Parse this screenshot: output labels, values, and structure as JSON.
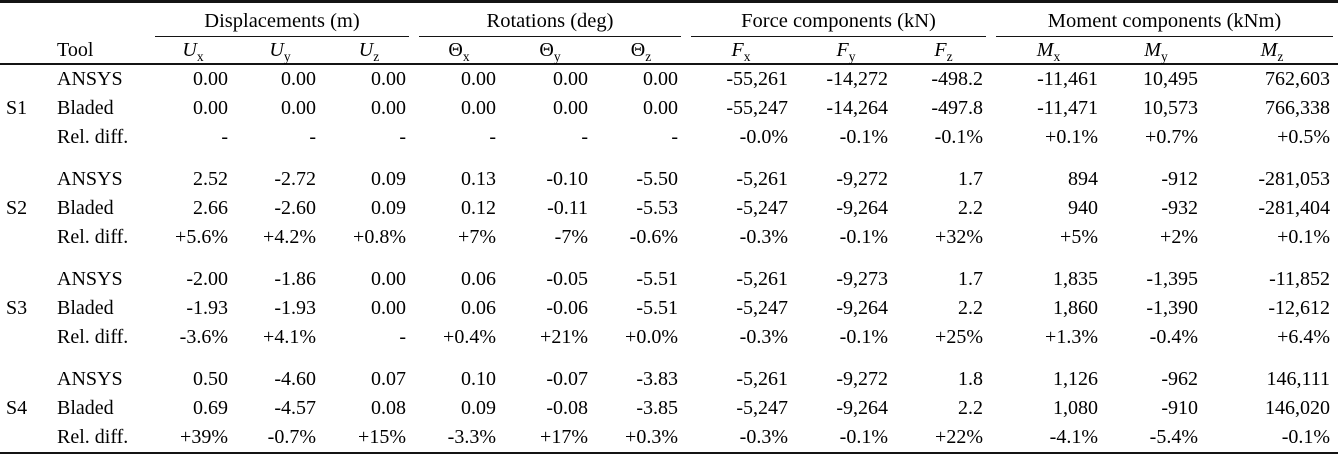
{
  "table": {
    "tool_header": "Tool",
    "groups": [
      {
        "label": "Displacements (m)"
      },
      {
        "label": "Rotations (deg)"
      },
      {
        "label": "Force components (kN)"
      },
      {
        "label": "Moment components (kNm)"
      }
    ],
    "columns": [
      {
        "base": "U",
        "sub": "x"
      },
      {
        "base": "U",
        "sub": "y"
      },
      {
        "base": "U",
        "sub": "z"
      },
      {
        "base": "Θ",
        "sub": "x"
      },
      {
        "base": "Θ",
        "sub": "y"
      },
      {
        "base": "Θ",
        "sub": "z"
      },
      {
        "base": "F",
        "sub": "x"
      },
      {
        "base": "F",
        "sub": "y"
      },
      {
        "base": "F",
        "sub": "z"
      },
      {
        "base": "M",
        "sub": "x"
      },
      {
        "base": "M",
        "sub": "y"
      },
      {
        "base": "M",
        "sub": "z"
      }
    ],
    "sections": [
      {
        "label": "S1",
        "rows": [
          {
            "tool": "ANSYS",
            "values": [
              "0.00",
              "0.00",
              "0.00",
              "0.00",
              "0.00",
              "0.00",
              "-55,261",
              "-14,272",
              "-498.2",
              "-11,461",
              "10,495",
              "762,603"
            ]
          },
          {
            "tool": "Bladed",
            "values": [
              "0.00",
              "0.00",
              "0.00",
              "0.00",
              "0.00",
              "0.00",
              "-55,247",
              "-14,264",
              "-497.8",
              "-11,471",
              "10,573",
              "766,338"
            ]
          },
          {
            "tool": "Rel. diff.",
            "values": [
              "-",
              "-",
              "-",
              "-",
              "-",
              "-",
              "-0.0%",
              "-0.1%",
              "-0.1%",
              "+0.1%",
              "+0.7%",
              "+0.5%"
            ]
          }
        ]
      },
      {
        "label": "S2",
        "rows": [
          {
            "tool": "ANSYS",
            "values": [
              "2.52",
              "-2.72",
              "0.09",
              "0.13",
              "-0.10",
              "-5.50",
              "-5,261",
              "-9,272",
              "1.7",
              "894",
              "-912",
              "-281,053"
            ]
          },
          {
            "tool": "Bladed",
            "values": [
              "2.66",
              "-2.60",
              "0.09",
              "0.12",
              "-0.11",
              "-5.53",
              "-5,247",
              "-9,264",
              "2.2",
              "940",
              "-932",
              "-281,404"
            ]
          },
          {
            "tool": "Rel. diff.",
            "values": [
              "+5.6%",
              "+4.2%",
              "+0.8%",
              "+7%",
              "-7%",
              "-0.6%",
              "-0.3%",
              "-0.1%",
              "+32%",
              "+5%",
              "+2%",
              "+0.1%"
            ]
          }
        ]
      },
      {
        "label": "S3",
        "rows": [
          {
            "tool": "ANSYS",
            "values": [
              "-2.00",
              "-1.86",
              "0.00",
              "0.06",
              "-0.05",
              "-5.51",
              "-5,261",
              "-9,273",
              "1.7",
              "1,835",
              "-1,395",
              "-11,852"
            ]
          },
          {
            "tool": "Bladed",
            "values": [
              "-1.93",
              "-1.93",
              "0.00",
              "0.06",
              "-0.06",
              "-5.51",
              "-5,247",
              "-9,264",
              "2.2",
              "1,860",
              "-1,390",
              "-12,612"
            ]
          },
          {
            "tool": "Rel. diff.",
            "values": [
              "-3.6%",
              "+4.1%",
              "-",
              "+0.4%",
              "+21%",
              "+0.0%",
              "-0.3%",
              "-0.1%",
              "+25%",
              "+1.3%",
              "-0.4%",
              "+6.4%"
            ]
          }
        ]
      },
      {
        "label": "S4",
        "rows": [
          {
            "tool": "ANSYS",
            "values": [
              "0.50",
              "-4.60",
              "0.07",
              "0.10",
              "-0.07",
              "-3.83",
              "-5,261",
              "-9,272",
              "1.8",
              "1,126",
              "-962",
              "146,111"
            ]
          },
          {
            "tool": "Bladed",
            "values": [
              "0.69",
              "-4.57",
              "0.08",
              "0.09",
              "-0.08",
              "-3.85",
              "-5,247",
              "-9,264",
              "2.2",
              "1,080",
              "-910",
              "146,020"
            ]
          },
          {
            "tool": "Rel. diff.",
            "values": [
              "+39%",
              "-0.7%",
              "+15%",
              "-3.3%",
              "+17%",
              "+0.3%",
              "-0.3%",
              "-0.1%",
              "+22%",
              "-4.1%",
              "-5.4%",
              "-0.1%"
            ]
          }
        ]
      }
    ]
  }
}
